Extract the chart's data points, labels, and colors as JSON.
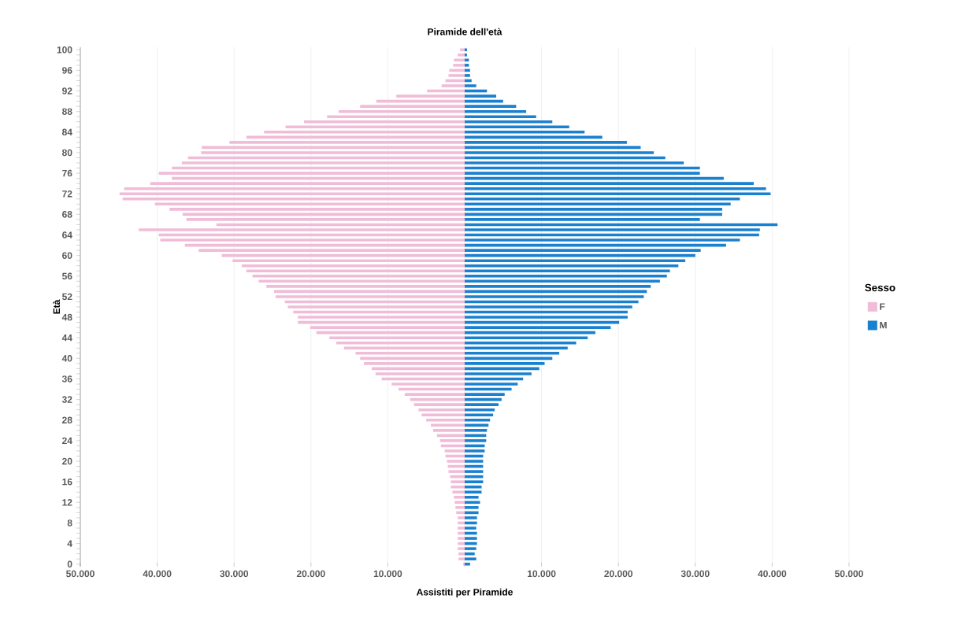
{
  "chart_data": {
    "type": "bar",
    "orientation": "horizontal",
    "stacked": true,
    "title": "Piramide dell'età",
    "xlabel": "Assistiti per Piramide",
    "ylabel": "Età",
    "legend_title": "Sesso",
    "legend": "right",
    "grid": "x",
    "categories": [
      "100",
      null,
      null,
      null,
      "96",
      null,
      null,
      null,
      "92",
      null,
      null,
      null,
      "88",
      null,
      null,
      null,
      "84",
      null,
      null,
      null,
      "80",
      null,
      null,
      null,
      "76",
      null,
      null,
      null,
      "72",
      null,
      null,
      null,
      "68",
      null,
      null,
      null,
      "64",
      null,
      null,
      null,
      "60",
      null,
      null,
      null,
      "56",
      null,
      null,
      null,
      "52",
      null,
      null,
      null,
      "48",
      null,
      null,
      null,
      "44",
      null,
      null,
      null,
      "40",
      null,
      null,
      null,
      "36",
      null,
      null,
      null,
      "32",
      null,
      null,
      null,
      "28",
      null,
      null,
      null,
      "24",
      null,
      null,
      null,
      "20",
      null,
      null,
      null,
      "16",
      null,
      null,
      null,
      "12",
      null,
      null,
      null,
      "8",
      null,
      null,
      null,
      "4",
      null,
      null,
      null,
      "0"
    ],
    "xlim": [
      -50000,
      50000
    ],
    "xticks": [
      {
        "value": -50000,
        "label": "50.000"
      },
      {
        "value": -40000,
        "label": "40.000"
      },
      {
        "value": -30000,
        "label": "30.000"
      },
      {
        "value": -20000,
        "label": "20.000"
      },
      {
        "value": -10000,
        "label": "10.000"
      },
      {
        "value": 0,
        "label": null
      },
      {
        "value": 10000,
        "label": "10.000"
      },
      {
        "value": 20000,
        "label": "20.000"
      },
      {
        "value": 30000,
        "label": "30.000"
      },
      {
        "value": 40000,
        "label": "40.000"
      },
      {
        "value": 50000,
        "label": "50.000"
      }
    ],
    "series": [
      {
        "name": "F",
        "color": "#f0bcd8",
        "values": [
          -600,
          -900,
          -1400,
          -1500,
          -2000,
          -2100,
          -2500,
          -3000,
          -4900,
          -8900,
          -11500,
          -13600,
          -16400,
          -17900,
          -20900,
          -23300,
          -26100,
          -28400,
          -30600,
          -34200,
          -34300,
          -36000,
          -36800,
          -38100,
          -39800,
          -38100,
          -40900,
          -44300,
          -44900,
          -44500,
          -40300,
          -38400,
          -36700,
          -36200,
          -32300,
          -42400,
          -39800,
          -39600,
          -36400,
          -34600,
          -31600,
          -30200,
          -29000,
          -28400,
          -27600,
          -26800,
          -25800,
          -24800,
          -24600,
          -23400,
          -23000,
          -22300,
          -21700,
          -21700,
          -20100,
          -19300,
          -17600,
          -16700,
          -15700,
          -14200,
          -13600,
          -13100,
          -12100,
          -11600,
          -10800,
          -9500,
          -8600,
          -7800,
          -7100,
          -6600,
          -6000,
          -5600,
          -5000,
          -4400,
          -4100,
          -3600,
          -3200,
          -3100,
          -2600,
          -2500,
          -2300,
          -2200,
          -2100,
          -1900,
          -1800,
          -1800,
          -1600,
          -1400,
          -1300,
          -1200,
          -1100,
          -900,
          -900,
          -900,
          -900,
          -900,
          -900,
          -900,
          -800,
          -800,
          -200
        ]
      },
      {
        "name": "M",
        "color": "#1a80d0",
        "values": [
          300,
          300,
          550,
          550,
          700,
          700,
          900,
          1500,
          2900,
          4100,
          5000,
          6700,
          8000,
          9300,
          11400,
          13600,
          15600,
          17900,
          21100,
          22900,
          24600,
          26100,
          28500,
          30600,
          30600,
          33700,
          37600,
          39200,
          39800,
          35800,
          34600,
          33500,
          33500,
          30600,
          40700,
          38400,
          38300,
          35800,
          34000,
          30700,
          30000,
          28700,
          27800,
          26700,
          26300,
          25400,
          24200,
          23700,
          23300,
          22600,
          21800,
          21200,
          21200,
          20100,
          19000,
          17000,
          16000,
          14500,
          13400,
          12300,
          11400,
          10400,
          9700,
          8700,
          7600,
          6900,
          6100,
          5200,
          4800,
          4400,
          3900,
          3700,
          3300,
          3100,
          2900,
          2800,
          2800,
          2600,
          2600,
          2400,
          2400,
          2400,
          2400,
          2400,
          2400,
          2200,
          2200,
          1800,
          2000,
          1800,
          1800,
          1600,
          1600,
          1500,
          1600,
          1600,
          1600,
          1500,
          1300,
          1500,
          700
        ]
      }
    ]
  }
}
